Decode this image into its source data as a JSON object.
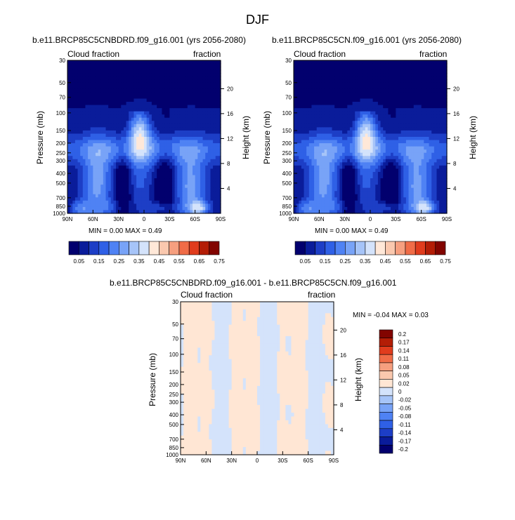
{
  "figure": {
    "title": "DJF",
    "colors": {
      "main_cmap": [
        "#02006e",
        "#0a1c9a",
        "#1d3ec6",
        "#2f60e6",
        "#4f82f4",
        "#78a3f7",
        "#a6c4f8",
        "#d4e3fb",
        "#ffe8d8",
        "#fac8ae",
        "#f69f7f",
        "#f06c47",
        "#e03c1d",
        "#b31d06",
        "#820400"
      ],
      "diff_cmap": [
        "#02006e",
        "#0a1c9a",
        "#1d3ec6",
        "#2f60e6",
        "#4f82f4",
        "#78a3f7",
        "#a6c4f8",
        "#d4e3fb",
        "#ffe6d4",
        "#fac8ae",
        "#f69f7f",
        "#f06c47",
        "#e03c1d",
        "#b31d06",
        "#820400"
      ]
    }
  },
  "chart_data": [
    {
      "type": "heatmap",
      "title": "b.e11.BRCP85C5CNBDRD.f09_g16.001 (yrs 2056-2080)",
      "left_label": "Cloud fraction",
      "right_label": "fraction",
      "xlabel": "",
      "ylabel": "Pressure (mb)",
      "ylabel_right": "Height (km)",
      "x_ticks": [
        "90N",
        "60N",
        "30N",
        "0",
        "30S",
        "60S",
        "90S"
      ],
      "y_ticks": [
        "30",
        "50",
        "70",
        "100",
        "150",
        "200",
        "250",
        "300",
        "400",
        "500",
        "700",
        "850",
        "1000"
      ],
      "y_ticks_right": [
        "20",
        "16",
        "12",
        "8",
        "4"
      ],
      "stats": "MIN =   0.00  MAX =   0.49",
      "min": 0.0,
      "max": 0.49,
      "features": [
        {
          "lat": 5,
          "p": 120,
          "value": 0.4
        },
        {
          "lat": -65,
          "p": 880,
          "value": 0.45
        },
        {
          "lat": 50,
          "p": 450,
          "value": 0.32
        },
        {
          "lat": 25,
          "p": 500,
          "value": 0.04
        },
        {
          "lat": -25,
          "p": 500,
          "value": 0.05
        }
      ]
    },
    {
      "type": "heatmap",
      "title": "b.e11.BRCP85C5CN.f09_g16.001 (yrs 2056-2080)",
      "left_label": "Cloud fraction",
      "right_label": "fraction",
      "xlabel": "",
      "ylabel": "Pressure (mb)",
      "ylabel_right": "Height (km)",
      "x_ticks": [
        "90N",
        "60N",
        "30N",
        "0",
        "30S",
        "60S",
        "90S"
      ],
      "y_ticks": [
        "30",
        "50",
        "70",
        "100",
        "150",
        "200",
        "250",
        "300",
        "400",
        "500",
        "700",
        "850",
        "1000"
      ],
      "y_ticks_right": [
        "20",
        "16",
        "12",
        "8",
        "4"
      ],
      "stats": "MIN =   0.00  MAX =   0.49",
      "min": 0.0,
      "max": 0.49
    },
    {
      "type": "heatmap",
      "title": "b.e11.BRCP85C5CNBDRD.f09_g16.001 - b.e11.BRCP85C5CN.f09_g16.001",
      "left_label": "Cloud fraction",
      "right_label": "fraction",
      "xlabel": "",
      "ylabel": "Pressure (mb)",
      "ylabel_right": "Height (km)",
      "x_ticks": [
        "90N",
        "60N",
        "30N",
        "0",
        "30S",
        "60S",
        "90S"
      ],
      "y_ticks": [
        "30",
        "50",
        "70",
        "100",
        "150",
        "200",
        "250",
        "300",
        "400",
        "500",
        "700",
        "850",
        "1000"
      ],
      "y_ticks_right": [
        "20",
        "16",
        "12",
        "8",
        "4"
      ],
      "stats": "MIN =  -0.04  MAX =   0.03",
      "min": -0.04,
      "max": 0.03
    }
  ],
  "colorbars": {
    "main": {
      "labels": [
        "0.05",
        "0.15",
        "0.25",
        "0.35",
        "0.45",
        "0.55",
        "0.65",
        "0.75"
      ],
      "levels": [
        0.05,
        0.1,
        0.15,
        0.2,
        0.25,
        0.3,
        0.35,
        0.4,
        0.45,
        0.5,
        0.55,
        0.6,
        0.65,
        0.7,
        0.75
      ]
    },
    "diff": {
      "labels": [
        "0.2",
        "0.17",
        "0.14",
        "0.11",
        "0.08",
        "0.05",
        "0.02",
        "0",
        "-0.02",
        "-0.05",
        "-0.08",
        "-0.11",
        "-0.14",
        "-0.17",
        "-0.2"
      ]
    }
  }
}
